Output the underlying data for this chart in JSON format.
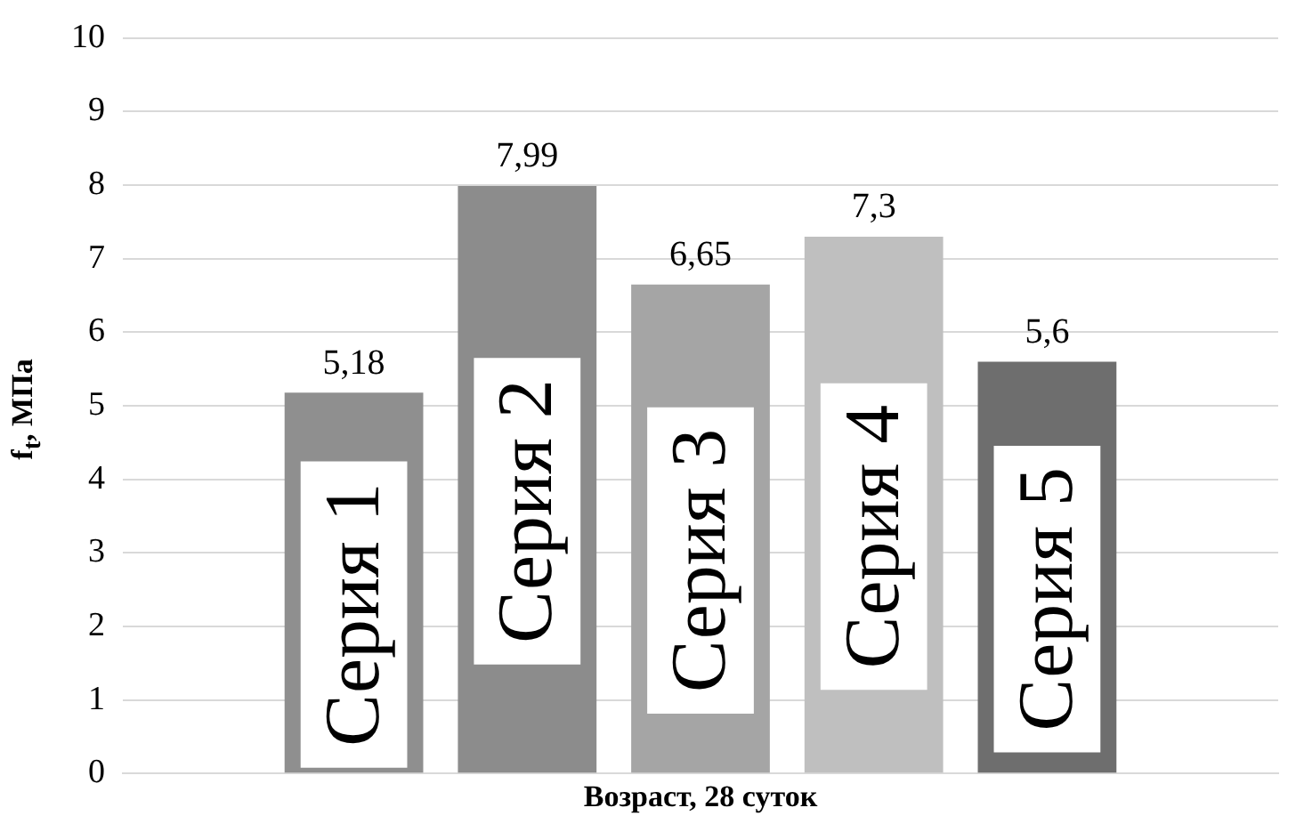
{
  "chart_data": {
    "type": "bar",
    "xlabel": "Возраст, 28 суток",
    "ylabel": "f$_{t}$, МПа",
    "categories": [
      null
    ],
    "series": [
      {
        "name": "Серия 1",
        "color": "#8f8f8f",
        "values": [
          5.18
        ],
        "value_labels": [
          "5,18"
        ]
      },
      {
        "name": "Серия 2",
        "color": "#8c8c8c",
        "values": [
          7.99
        ],
        "value_labels": [
          "7,99"
        ]
      },
      {
        "name": "Серия 3",
        "color": "#a5a5a5",
        "values": [
          6.65
        ],
        "value_labels": [
          "6,65"
        ]
      },
      {
        "name": "Серия 4",
        "color": "#bfbfbf",
        "values": [
          7.3
        ],
        "value_labels": [
          "7,3"
        ]
      },
      {
        "name": "Серия 5",
        "color": "#6e6e6e",
        "values": [
          5.6
        ],
        "value_labels": [
          "5,6"
        ]
      }
    ],
    "ylim": [
      0,
      10
    ],
    "yticks": [
      0,
      1,
      2,
      3,
      4,
      5,
      6,
      7,
      8,
      9,
      10
    ],
    "grid": "y",
    "legend": false
  }
}
